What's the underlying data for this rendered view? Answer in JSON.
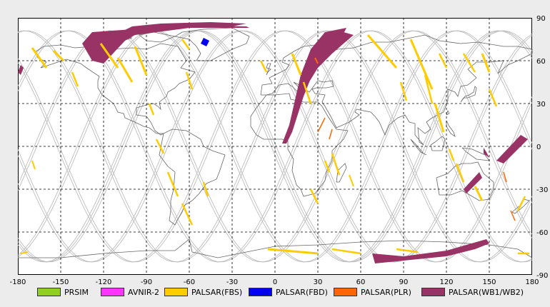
{
  "map": {
    "x_ticks": [
      "-180",
      "-150",
      "-120",
      "-90",
      "-60",
      "-30",
      "0",
      "30",
      "60",
      "90",
      "120",
      "150",
      "180"
    ],
    "y_ticks": [
      "90",
      "60",
      "30",
      "0",
      "-30",
      "-60",
      "-90"
    ],
    "xlim": [
      -180,
      180
    ],
    "ylim": [
      -90,
      90
    ],
    "grid": "dashed",
    "background": "#ececec",
    "land_outline_color": "#666666",
    "orbit_color": "#bdbdbd"
  },
  "legend": [
    {
      "label": "PRSIM",
      "color": "#92d020"
    },
    {
      "label": "AVNIR-2",
      "color": "#ff33ff"
    },
    {
      "label": "PALSAR(FBS)",
      "color": "#ffcc00"
    },
    {
      "label": "PALSAR(FBD)",
      "color": "#0000ee"
    },
    {
      "label": "PALSAR(PLR)",
      "color": "#ff6600"
    },
    {
      "label": "PALSAR(WB1/WB2)",
      "color": "#993366"
    }
  ]
}
